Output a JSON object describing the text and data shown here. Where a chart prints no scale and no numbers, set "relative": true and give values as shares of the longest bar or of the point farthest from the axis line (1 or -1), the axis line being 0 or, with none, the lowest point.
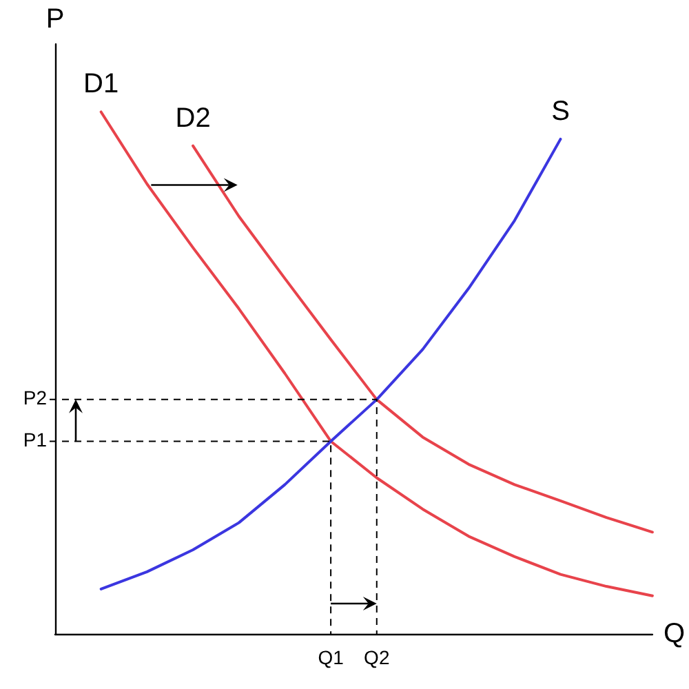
{
  "chart_data": {
    "type": "line",
    "relative": true,
    "xlabel": "Q",
    "ylabel": "P",
    "categories": [
      null,
      null,
      null,
      null,
      null,
      null,
      "Q1",
      "Q2",
      null,
      null,
      null,
      null,
      null,
      null
    ],
    "grid": false,
    "legend": false,
    "marker": "none",
    "line_style": "solid",
    "series": [
      {
        "name": "D1",
        "color": "#e8434b",
        "values": [
          null,
          1,
          0.862,
          0.74,
          0.623,
          0.499,
          0.369,
          0.299,
          0.239,
          0.187,
          0.148,
          0.114,
          0.091,
          0.073
        ]
      },
      {
        "name": "D2",
        "color": "#e8434b",
        "values": [
          null,
          null,
          null,
          0.935,
          0.8,
          0.681,
          0.564,
          0.449,
          0.377,
          0.325,
          0.286,
          0.255,
          0.223,
          0.195
        ]
      },
      {
        "name": "S",
        "color": "#3b36e0",
        "values": [
          null,
          0.086,
          0.119,
          0.161,
          0.213,
          0.286,
          0.369,
          0.449,
          0.545,
          0.662,
          0.792,
          0.948,
          null,
          null
        ]
      }
    ],
    "ref_lines": [
      {
        "axis": "y",
        "value": 0.369,
        "label": "P1",
        "color": "#000000",
        "line_style": "dashed"
      },
      {
        "axis": "y",
        "value": 0.449,
        "label": "P2",
        "color": "#000000",
        "line_style": "dashed"
      }
    ]
  }
}
